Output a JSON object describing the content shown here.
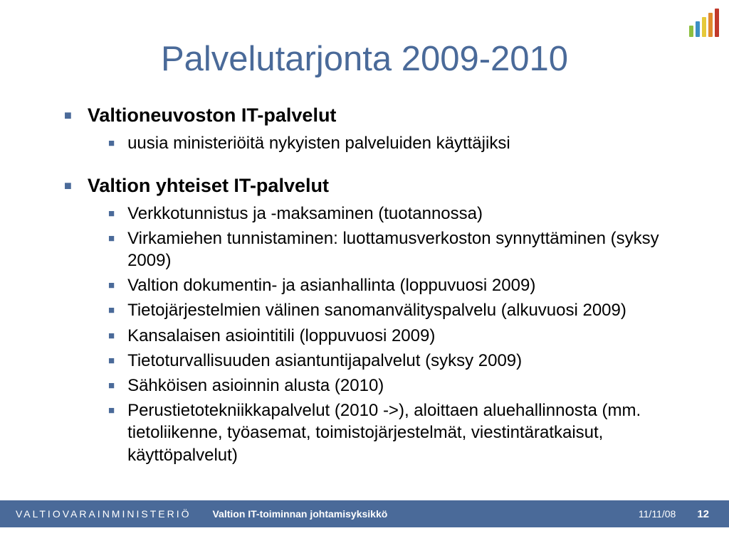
{
  "title": "Palvelutarjonta 2009-2010",
  "colors": {
    "title": "#4a6a99",
    "bullet": "#4a6a99",
    "text": "#000000",
    "footer_bg": "#4a6a99",
    "footer_text": "#ffffff",
    "background": "#ffffff"
  },
  "typography": {
    "title_fontsize": 49,
    "level1_fontsize": 27,
    "level2_fontsize": 24,
    "footer_fontsize": 14
  },
  "sections": [
    {
      "heading": "Valtioneuvoston IT-palvelut",
      "items": [
        "uusia ministeriöitä nykyisten palveluiden käyttäjiksi"
      ]
    },
    {
      "heading": "Valtion yhteiset IT-palvelut",
      "items": [
        "Verkkotunnistus ja -maksaminen (tuotannossa)",
        "Virkamiehen tunnistaminen: luottamusverkoston synnyttäminen (syksy 2009)",
        "Valtion dokumentin- ja asianhallinta (loppuvuosi 2009)",
        "Tietojärjestelmien välinen sanomanvälityspalvelu (alkuvuosi 2009)",
        "Kansalaisen asiointitili (loppuvuosi 2009)",
        "Tietoturvallisuuden asiantuntijapalvelut (syksy 2009)",
        "Sähköisen asioinnin alusta (2010)",
        "Perustietotekniikkapalvelut (2010 ->), aloittaen aluehallinnosta (mm. tietoliikenne, työasemat, toimistojärjestelmät, viestintäratkaisut, käyttöpalvelut)"
      ]
    }
  ],
  "footer": {
    "ministry": "VALTIOVARAINMINISTERIÖ",
    "unit": "Valtion IT-toiminnan johtamisyksikkö",
    "date": "11/11/08",
    "page": "12"
  },
  "decor_bars": [
    {
      "color": "#8dbf3f",
      "height": 16
    },
    {
      "color": "#3c8fc4",
      "height": 22
    },
    {
      "color": "#e6c93a",
      "height": 28
    },
    {
      "color": "#e08a2d",
      "height": 34
    },
    {
      "color": "#c1392b",
      "height": 40
    }
  ]
}
